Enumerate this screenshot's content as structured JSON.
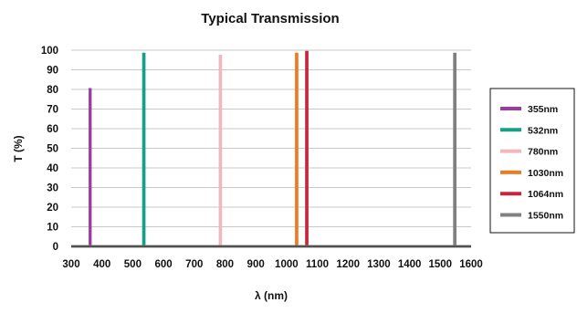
{
  "chart_data": {
    "type": "line",
    "title": "Typical Transmission",
    "xlabel": "λ (nm)",
    "ylabel": "T (%)",
    "xlim": [
      300,
      1600
    ],
    "ylim": [
      0,
      100
    ],
    "x_ticks": [
      300,
      400,
      500,
      600,
      700,
      800,
      900,
      1000,
      1100,
      1200,
      1300,
      1400,
      1500,
      1600
    ],
    "y_ticks": [
      0,
      10,
      20,
      30,
      40,
      50,
      60,
      70,
      80,
      90,
      100
    ],
    "grid": "horizontal",
    "legend_position": "right",
    "series": [
      {
        "name": "355nm",
        "color": "#a0399f",
        "x": [
          300,
          361,
          361,
          362,
          362,
          1600
        ],
        "y": [
          0,
          0,
          80,
          80,
          0,
          0
        ]
      },
      {
        "name": "532nm",
        "color": "#16a085",
        "x": [
          300,
          535,
          535,
          537,
          537,
          1600
        ],
        "y": [
          0,
          0,
          98,
          98,
          0,
          0
        ]
      },
      {
        "name": "780nm",
        "color": "#f0b8be",
        "x": [
          300,
          784,
          784,
          786,
          786,
          1600
        ],
        "y": [
          0,
          0,
          97,
          97,
          0,
          0
        ]
      },
      {
        "name": "1030nm",
        "color": "#f07a22",
        "x": [
          300,
          1032,
          1032,
          1034,
          1034,
          1600
        ],
        "y": [
          0,
          0,
          98,
          98,
          0,
          0
        ]
      },
      {
        "name": "1064nm",
        "color": "#c5283d",
        "x": [
          300,
          1065,
          1065,
          1067,
          1067,
          1600
        ],
        "y": [
          0,
          0,
          99,
          99,
          0,
          0
        ]
      },
      {
        "name": "1550nm",
        "color": "#808080",
        "x": [
          300,
          1546,
          1546,
          1548,
          1548,
          1600
        ],
        "y": [
          0,
          0,
          98,
          98,
          0,
          0
        ]
      }
    ]
  }
}
